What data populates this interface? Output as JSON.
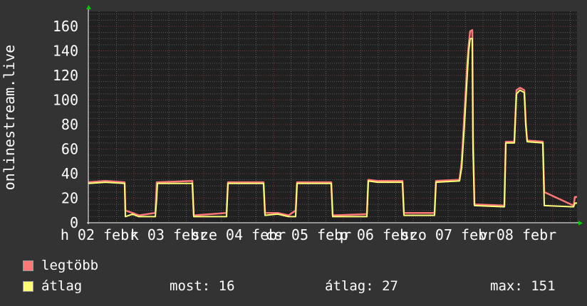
{
  "chart_data": {
    "type": "line",
    "ylabel": "onlinestream.live",
    "ylim": [
      0,
      172
    ],
    "yticks": [
      0,
      20,
      40,
      60,
      80,
      100,
      120,
      140,
      160
    ],
    "xlim": [
      "02-02 08:20",
      "02-09 08:20"
    ],
    "xtick_labels": [
      "h 02 febr",
      "k 03 febr",
      "sze 04 febr",
      "cs 05 febr",
      "p 06 febr",
      "szo 07 febr",
      "v 08 febr"
    ],
    "xtick_times": [
      "02-02 12:00",
      "02-03 12:00",
      "02-04 12:00",
      "02-05 12:00",
      "02-06 12:00",
      "02-07 12:00",
      "02-08 12:00"
    ],
    "grid": true,
    "legend_placement": "bottom",
    "colors": {
      "background": "#333333",
      "plot_background": "#202020",
      "minor_grid": "#5a5a5a",
      "major_grid": "#7a3a3a",
      "axis_arrow": "#00cc00"
    },
    "series": [
      {
        "name": "legtöbb",
        "color": "#ff7777",
        "points": [
          [
            "02-02 08:20",
            33
          ],
          [
            "02-02 14:12",
            34
          ],
          [
            "02-02 20:49",
            33
          ],
          [
            "02-02 21:04",
            10
          ],
          [
            "02-02 23:31",
            8
          ],
          [
            "02-03 01:43",
            6
          ],
          [
            "02-03 07:21",
            8
          ],
          [
            "02-03 07:50",
            33
          ],
          [
            "02-03 08:05",
            33
          ],
          [
            "02-03 20:05",
            34
          ],
          [
            "02-03 20:34",
            6
          ],
          [
            "02-04 07:50",
            8
          ],
          [
            "02-04 08:20",
            33
          ],
          [
            "02-04 20:34",
            33
          ],
          [
            "02-04 21:04",
            8
          ],
          [
            "02-05 01:28",
            8
          ],
          [
            "02-05 05:09",
            6
          ],
          [
            "02-05 07:36",
            10
          ],
          [
            "02-05 08:05",
            33
          ],
          [
            "02-05 19:50",
            33
          ],
          [
            "02-05 20:20",
            6
          ],
          [
            "02-06 08:05",
            7
          ],
          [
            "02-06 08:34",
            35
          ],
          [
            "02-06 11:46",
            34
          ],
          [
            "02-06 20:20",
            34
          ],
          [
            "02-06 20:49",
            8
          ],
          [
            "02-07 07:21",
            8
          ],
          [
            "02-07 07:50",
            34
          ],
          [
            "02-07 15:55",
            35
          ],
          [
            "02-07 16:40",
            50
          ],
          [
            "02-07 17:38",
            90
          ],
          [
            "02-07 18:36",
            130
          ],
          [
            "02-07 19:05",
            145
          ],
          [
            "02-07 19:36",
            156
          ],
          [
            "02-07 20:20",
            157
          ],
          [
            "02-07 20:34",
            70
          ],
          [
            "02-07 21:04",
            15
          ],
          [
            "02-08 07:21",
            14
          ],
          [
            "02-08 07:50",
            66
          ],
          [
            "02-08 10:46",
            66
          ],
          [
            "02-08 11:31",
            108
          ],
          [
            "02-08 12:44",
            110
          ],
          [
            "02-08 14:12",
            108
          ],
          [
            "02-08 14:42",
            82
          ],
          [
            "02-08 15:11",
            67
          ],
          [
            "02-08 20:34",
            66
          ],
          [
            "02-08 21:04",
            25
          ],
          [
            "02-09 07:07",
            14
          ],
          [
            "02-09 07:36",
            21
          ],
          [
            "02-09 08:20",
            21
          ]
        ]
      },
      {
        "name": "átlag",
        "color": "#ffff77",
        "points": [
          [
            "02-02 08:20",
            32
          ],
          [
            "02-02 14:12",
            33
          ],
          [
            "02-02 20:49",
            32
          ],
          [
            "02-02 21:04",
            5
          ],
          [
            "02-02 23:31",
            7
          ],
          [
            "02-03 01:43",
            5
          ],
          [
            "02-03 07:21",
            5
          ],
          [
            "02-03 07:50",
            20
          ],
          [
            "02-03 08:05",
            32
          ],
          [
            "02-03 20:05",
            32
          ],
          [
            "02-03 20:34",
            5
          ],
          [
            "02-04 07:50",
            5
          ],
          [
            "02-04 08:20",
            32
          ],
          [
            "02-04 20:34",
            32
          ],
          [
            "02-04 21:04",
            6
          ],
          [
            "02-05 01:28",
            7
          ],
          [
            "02-05 05:09",
            5
          ],
          [
            "02-05 07:36",
            5
          ],
          [
            "02-05 08:05",
            32
          ],
          [
            "02-05 19:50",
            32
          ],
          [
            "02-05 20:20",
            5
          ],
          [
            "02-06 08:05",
            5
          ],
          [
            "02-06 08:34",
            34
          ],
          [
            "02-06 11:46",
            33
          ],
          [
            "02-06 20:20",
            33
          ],
          [
            "02-06 20:49",
            6
          ],
          [
            "02-07 07:21",
            6
          ],
          [
            "02-07 07:50",
            33
          ],
          [
            "02-07 15:55",
            34
          ],
          [
            "02-07 16:40",
            45
          ],
          [
            "02-07 17:38",
            80
          ],
          [
            "02-07 18:36",
            120
          ],
          [
            "02-07 19:05",
            140
          ],
          [
            "02-07 19:36",
            150
          ],
          [
            "02-07 20:20",
            150
          ],
          [
            "02-07 20:34",
            60
          ],
          [
            "02-07 21:04",
            14
          ],
          [
            "02-08 07:21",
            13
          ],
          [
            "02-08 07:50",
            65
          ],
          [
            "02-08 10:46",
            65
          ],
          [
            "02-08 11:31",
            105
          ],
          [
            "02-08 12:44",
            108
          ],
          [
            "02-08 14:12",
            106
          ],
          [
            "02-08 14:42",
            80
          ],
          [
            "02-08 15:11",
            66
          ],
          [
            "02-08 20:34",
            65
          ],
          [
            "02-08 21:04",
            14
          ],
          [
            "02-09 07:07",
            13
          ],
          [
            "02-09 07:36",
            16
          ],
          [
            "02-09 08:20",
            16
          ]
        ]
      }
    ]
  },
  "legend": {
    "max_label": "legtöbb",
    "avg_label": "átlag",
    "current": "most: 16",
    "average": "átlag: 27",
    "maximum": "max: 151"
  }
}
